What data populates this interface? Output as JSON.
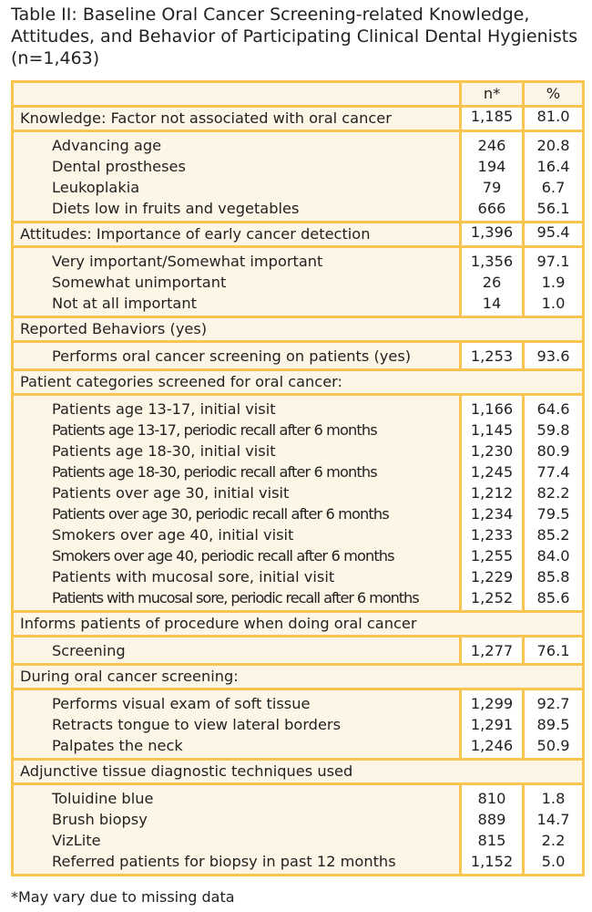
{
  "title": "Table II: Baseline Oral Cancer Screening-related Knowledge, Attitudes, and Behavior of Participating Clinical Dental Hygienists (n=1,463)",
  "columns": {
    "n": "n*",
    "pct": "%"
  },
  "colors": {
    "border": "#f8c650",
    "label_bg": "#fdf6e6",
    "value_bg": "#ffffff"
  },
  "sections": [
    {
      "header": {
        "label": "Knowledge: Factor not associated with oral cancer",
        "n": "1,185",
        "pct": "81.0"
      },
      "rows": [
        {
          "label": "Advancing age",
          "n": "246",
          "pct": "20.8"
        },
        {
          "label": "Dental prostheses",
          "n": "194",
          "pct": "16.4"
        },
        {
          "label": "Leukoplakia",
          "n": "79",
          "pct": "6.7"
        },
        {
          "label": "Diets low in fruits and vegetables",
          "n": "666",
          "pct": "56.1"
        }
      ]
    },
    {
      "header": {
        "label": "Attitudes: Importance of early cancer detection",
        "n": "1,396",
        "pct": "95.4"
      },
      "rows": [
        {
          "label": "Very important/Somewhat important",
          "n": "1,356",
          "pct": "97.1"
        },
        {
          "label": "Somewhat unimportant",
          "n": "26",
          "pct": "1.9"
        },
        {
          "label": "Not at all important",
          "n": "14",
          "pct": "1.0"
        }
      ]
    },
    {
      "header": {
        "label": "Reported Behaviors (yes)"
      },
      "rows": [
        {
          "label": "Performs oral cancer screening on patients (yes)",
          "n": "1,253",
          "pct": "93.6"
        }
      ]
    },
    {
      "header": {
        "label": "Patient categories screened for oral cancer:"
      },
      "rows": [
        {
          "label": "Patients age 13-17, initial visit",
          "n": "1,166",
          "pct": "64.6"
        },
        {
          "label": "Patients age 13-17, periodic recall after 6 months",
          "n": "1,145",
          "pct": "59.8"
        },
        {
          "label": "Patients age 18-30, initial visit",
          "n": "1,230",
          "pct": "80.9"
        },
        {
          "label": "Patients age 18-30, periodic recall after 6 months",
          "n": "1,245",
          "pct": "77.4"
        },
        {
          "label": "Patients over age 30, initial visit",
          "n": "1,212",
          "pct": "82.2"
        },
        {
          "label": "Patients over age 30, periodic recall after 6 months",
          "n": "1,234",
          "pct": "79.5"
        },
        {
          "label": "Smokers over age 40, initial visit",
          "n": "1,233",
          "pct": "85.2"
        },
        {
          "label": "Smokers over age 40, periodic recall after 6 months",
          "n": "1,255",
          "pct": "84.0"
        },
        {
          "label": "Patients with mucosal sore, initial visit",
          "n": "1,229",
          "pct": "85.8"
        },
        {
          "label": "Patients with mucosal sore, periodic recall after 6 months",
          "n": "1,252",
          "pct": "85.6"
        }
      ]
    },
    {
      "header": {
        "label": "Informs patients of procedure when doing oral cancer"
      },
      "rows": [
        {
          "label": "Screening",
          "n": "1,277",
          "pct": "76.1"
        }
      ]
    },
    {
      "header": {
        "label": "During oral cancer screening:"
      },
      "rows": [
        {
          "label": "Performs visual exam of soft tissue",
          "n": "1,299",
          "pct": "92.7"
        },
        {
          "label": "Retracts tongue to view lateral borders",
          "n": "1,291",
          "pct": "89.5"
        },
        {
          "label": "Palpates the neck",
          "n": "1,246",
          "pct": "50.9"
        }
      ]
    },
    {
      "header": {
        "label": "Adjunctive tissue diagnostic techniques used"
      },
      "rows": [
        {
          "label": "Toluidine blue",
          "n": "810",
          "pct": "1.8"
        },
        {
          "label": "Brush biopsy",
          "n": "889",
          "pct": "14.7"
        },
        {
          "label": "VizLite",
          "n": "815",
          "pct": "2.2"
        },
        {
          "label": "Referred patients for biopsy in past 12 months",
          "n": "1,152",
          "pct": "5.0"
        }
      ]
    }
  ],
  "footnote": "*May vary due to missing data"
}
